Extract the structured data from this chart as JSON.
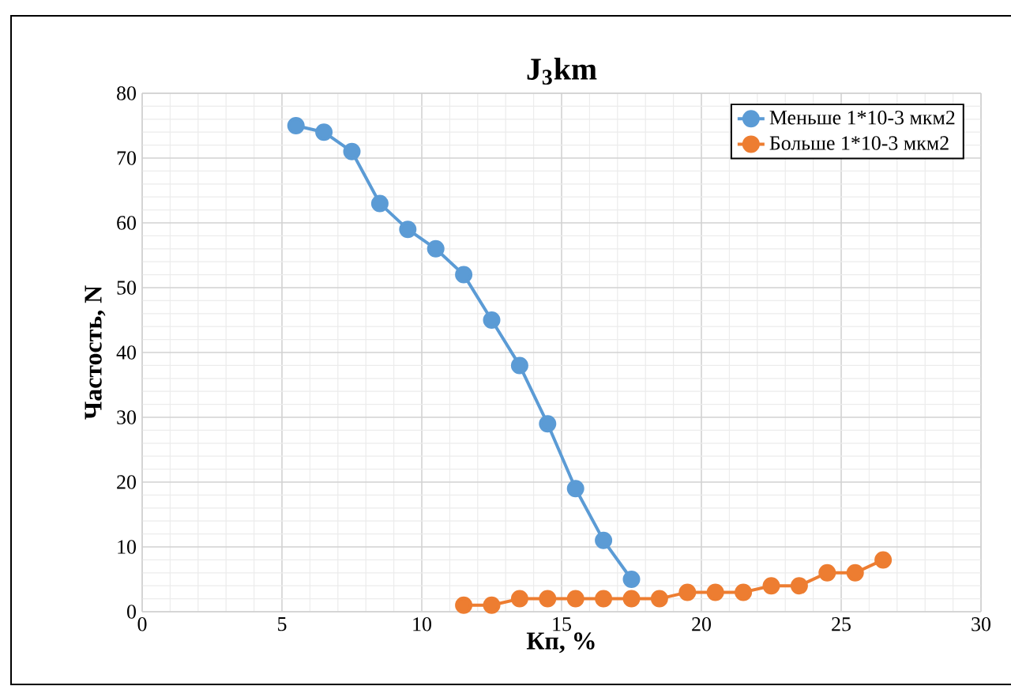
{
  "chart_data": {
    "type": "line",
    "title": "J$_{3}$km",
    "xlabel": "Кп, %",
    "ylabel": "Частость, N",
    "xlim": [
      0,
      30
    ],
    "xticks": [
      0,
      5,
      10,
      15,
      20,
      25,
      30
    ],
    "ylim": [
      0,
      80
    ],
    "yticks": [
      0,
      10,
      20,
      30,
      40,
      50,
      60,
      70,
      80
    ],
    "grid": true,
    "legend": "top right",
    "marker": "circle",
    "line_style": "solid",
    "series": [
      {
        "name": "Меньше 1*10-3 мкм2",
        "color": "#5b9bd5",
        "x": [
          5.5,
          6.5,
          7.5,
          8.5,
          9.5,
          10.5,
          11.5,
          12.5,
          13.5,
          14.5,
          15.5,
          16.5,
          17.5
        ],
        "values": [
          75,
          74,
          71,
          63,
          59,
          56,
          52,
          45,
          38,
          29,
          19,
          11,
          5
        ]
      },
      {
        "name": "Больше 1*10-3 мкм2",
        "color": "#ed7d31",
        "x": [
          11.5,
          12.5,
          13.5,
          14.5,
          15.5,
          16.5,
          17.5,
          18.5,
          19.5,
          20.5,
          21.5,
          22.5,
          23.5,
          24.5,
          25.5,
          26.5
        ],
        "values": [
          1,
          1,
          2,
          2,
          2,
          2,
          2,
          2,
          3,
          3,
          3,
          4,
          4,
          6,
          6,
          8
        ]
      }
    ]
  }
}
